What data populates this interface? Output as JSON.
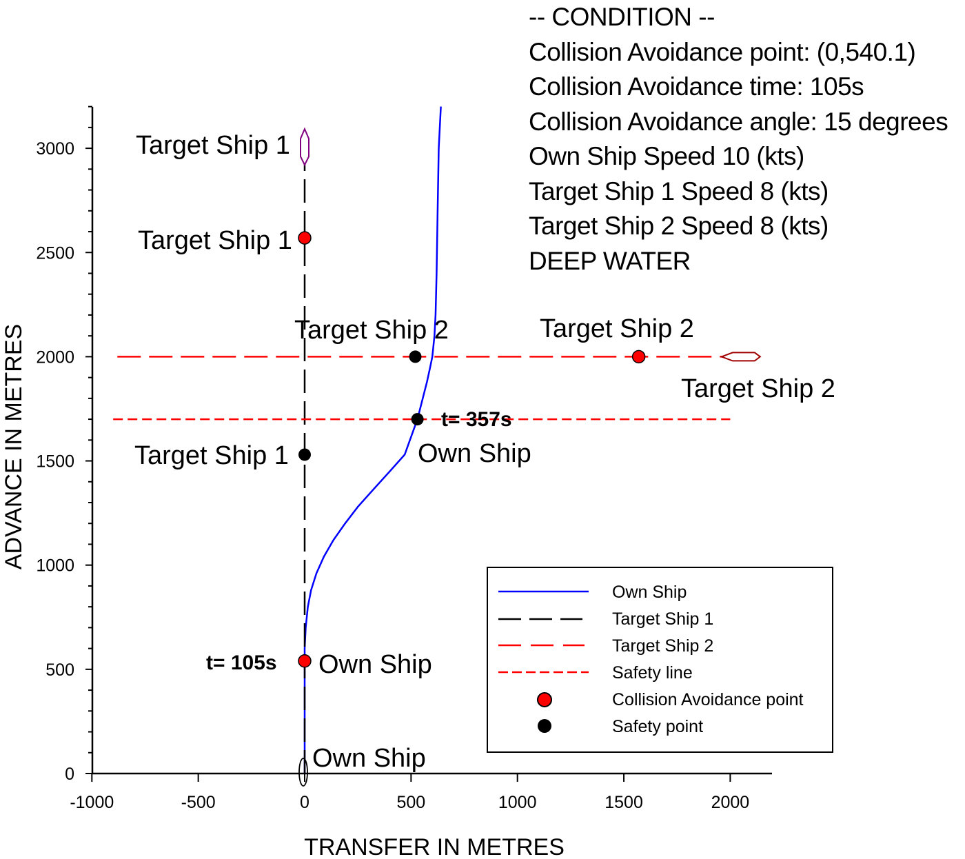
{
  "condition": {
    "header": "-- CONDITION --",
    "lines": [
      "Collision Avoidance point:  (0,540.1)",
      "Collision Avoidance time:  105s",
      "Collision Avoidance angle:  15 degrees",
      "Own Ship Speed  10 (kts)",
      "Target Ship 1 Speed  8 (kts)",
      "Target Ship 2 Speed  8 (kts)",
      "DEEP WATER"
    ]
  },
  "colors": {
    "own_ship": "#0000ff",
    "target_ship_1": "#000000",
    "target_ship_2": "#ff0000",
    "safety_line": "#ff0000",
    "collision_point": "#ff0000",
    "safety_point": "#000000",
    "target_ship_1_marker": "#800080",
    "target_ship_2_marker": "#a00000"
  },
  "annotations": {
    "ts1_top": "Target Ship 1",
    "ts1_mid": "Target Ship 1",
    "ts1_low": "Target Ship 1",
    "ts2_left": "Target Ship 2",
    "ts2_mid": "Target Ship 2",
    "ts2_right": "Target Ship 2",
    "own_start": "Own Ship",
    "own_105": "Own Ship",
    "own_357": "Own Ship",
    "t105": "t= 105s",
    "t357": "t= 357s"
  },
  "legend": {
    "items": [
      {
        "label": "Own Ship",
        "kind": "solid",
        "color": "#0000ff"
      },
      {
        "label": "Target Ship 1",
        "kind": "longdash",
        "color": "#000000"
      },
      {
        "label": "Target Ship 2",
        "kind": "longdash",
        "color": "#ff0000"
      },
      {
        "label": "Safety line",
        "kind": "shortdash",
        "color": "#ff0000"
      },
      {
        "label": "Collision Avoidance point",
        "kind": "dot",
        "color": "#ff0000"
      },
      {
        "label": "Safety  point",
        "kind": "dot",
        "color": "#000000"
      }
    ]
  },
  "chart_data": {
    "type": "line",
    "title": "",
    "xlabel": "TRANSFER IN METRES",
    "ylabel": "ADVANCE IN METRES",
    "xlim": [
      -1000,
      2200
    ],
    "ylim": [
      0,
      3200
    ],
    "xticks": [
      -1000,
      -500,
      0,
      500,
      1000,
      1500,
      2000
    ],
    "yticks": [
      0,
      500,
      1000,
      1500,
      2000,
      2500,
      3000
    ],
    "grid": false,
    "legend_position": "lower right",
    "series": [
      {
        "name": "Own Ship",
        "style": "solid",
        "color": "#0000ff",
        "x": [
          0,
          0,
          0,
          5,
          15,
          30,
          55,
          90,
          135,
          190,
          250,
          320,
          400,
          470,
          530,
          555,
          575,
          590,
          600,
          610,
          615,
          620,
          625,
          630,
          640
        ],
        "y": [
          0,
          300,
          600,
          700,
          800,
          880,
          960,
          1040,
          1120,
          1200,
          1280,
          1360,
          1450,
          1530,
          1700,
          1800,
          1880,
          1950,
          2000,
          2100,
          2200,
          2400,
          2700,
          3000,
          3200
        ]
      },
      {
        "name": "Target Ship 1",
        "style": "longdash",
        "color": "#000000",
        "x": [
          0,
          0
        ],
        "y": [
          0,
          3000
        ]
      },
      {
        "name": "Target Ship 2",
        "style": "longdash",
        "color": "#ff0000",
        "x": [
          -880,
          2100
        ],
        "y": [
          2000,
          2000
        ]
      },
      {
        "name": "Safety line",
        "style": "shortdash",
        "color": "#ff0000",
        "x": [
          -900,
          2000
        ],
        "y": [
          1700,
          1700
        ]
      }
    ],
    "points": [
      {
        "name": "Collision Avoidance point",
        "series": "Own Ship",
        "x": 0,
        "y": 540,
        "color": "#ff0000",
        "label": "t= 105s"
      },
      {
        "name": "Collision Avoidance point",
        "series": "Target Ship 1",
        "x": 0,
        "y": 2570,
        "color": "#ff0000"
      },
      {
        "name": "Collision Avoidance point",
        "series": "Target Ship 2",
        "x": 1570,
        "y": 2000,
        "color": "#ff0000"
      },
      {
        "name": "Safety point",
        "series": "Own Ship",
        "x": 530,
        "y": 1700,
        "color": "#000000",
        "label": "t= 357s"
      },
      {
        "name": "Safety point",
        "series": "Target Ship 1",
        "x": 0,
        "y": 1530,
        "color": "#000000"
      },
      {
        "name": "Safety point",
        "series": "Target Ship 2",
        "x": 520,
        "y": 2000,
        "color": "#000000"
      }
    ],
    "ship_markers": [
      {
        "name": "Own Ship start",
        "x": 0,
        "y": 0,
        "heading": "north"
      },
      {
        "name": "Target Ship 1",
        "x": 0,
        "y": 3000,
        "heading": "south"
      },
      {
        "name": "Target Ship 2",
        "x": 2050,
        "y": 2000,
        "heading": "west"
      }
    ]
  }
}
